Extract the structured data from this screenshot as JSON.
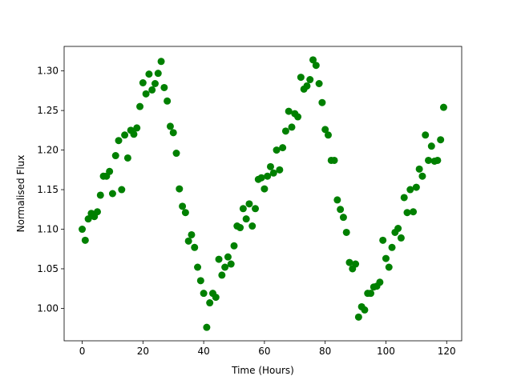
{
  "chart_data": {
    "type": "scatter",
    "xlabel": "Time (Hours)",
    "ylabel": "Normalised Flux",
    "color": "#008000",
    "x": [
      0,
      1,
      2,
      3,
      4,
      5,
      6,
      7,
      8,
      9,
      10,
      11,
      12,
      13,
      14,
      15,
      16,
      17,
      18,
      19,
      20,
      21,
      22,
      23,
      24,
      25,
      26,
      27,
      28,
      29,
      30,
      31,
      32,
      33,
      34,
      35,
      36,
      37,
      38,
      39,
      40,
      41,
      42,
      43,
      44,
      45,
      46,
      47,
      48,
      49,
      50,
      51,
      52,
      53,
      54,
      55,
      56,
      57,
      58,
      59,
      60,
      61,
      62,
      63,
      64,
      65,
      66,
      67,
      68,
      69,
      70,
      71,
      72,
      73,
      74,
      75,
      76,
      77,
      78,
      79,
      80,
      81,
      82,
      83,
      84,
      85,
      86,
      87,
      88,
      89,
      90,
      91,
      92,
      93,
      94,
      95,
      96,
      97,
      98,
      99,
      100,
      101,
      102,
      103,
      104,
      105,
      106,
      107,
      108,
      109,
      110,
      111,
      112,
      113,
      114,
      115,
      116,
      117,
      118,
      119
    ],
    "values": [
      1.1,
      1.086,
      1.113,
      1.12,
      1.116,
      1.122,
      1.143,
      1.167,
      1.167,
      1.173,
      1.145,
      1.193,
      1.212,
      1.15,
      1.219,
      1.19,
      1.225,
      1.22,
      1.228,
      1.255,
      1.285,
      1.271,
      1.296,
      1.276,
      1.284,
      1.297,
      1.312,
      1.279,
      1.262,
      1.23,
      1.222,
      1.196,
      1.151,
      1.129,
      1.121,
      1.085,
      1.093,
      1.077,
      1.052,
      1.035,
      1.019,
      0.976,
      1.007,
      1.019,
      1.014,
      1.062,
      1.042,
      1.052,
      1.065,
      1.056,
      1.079,
      1.104,
      1.102,
      1.126,
      1.113,
      1.132,
      1.104,
      1.126,
      1.163,
      1.165,
      1.151,
      1.167,
      1.179,
      1.171,
      1.2,
      1.175,
      1.203,
      1.224,
      1.249,
      1.229,
      1.246,
      1.242,
      1.292,
      1.277,
      1.281,
      1.289,
      1.314,
      1.307,
      1.284,
      1.26,
      1.226,
      1.219,
      1.187,
      1.187,
      1.137,
      1.125,
      1.115,
      1.096,
      1.058,
      1.05,
      1.056,
      0.989,
      1.002,
      0.998,
      1.019,
      1.019,
      1.027,
      1.028,
      1.033,
      1.086,
      1.063,
      1.052,
      1.077,
      1.096,
      1.101,
      1.089,
      1.14,
      1.121,
      1.15,
      1.122,
      1.153,
      1.176,
      1.167,
      1.219,
      1.187,
      1.205,
      1.186,
      1.187,
      1.213,
      1.254
    ],
    "xlim": [
      -5.95,
      124.95
    ],
    "ylim": [
      0.959,
      1.331
    ],
    "xticks": [
      0,
      20,
      40,
      60,
      80,
      100,
      120
    ],
    "yticks": [
      {
        "value": 1.0,
        "label": "1.00"
      },
      1.05,
      {
        "value": 1.1,
        "label": "1.10"
      },
      1.15,
      {
        "value": 1.2,
        "label": "1.20"
      },
      1.25,
      {
        "value": 1.3,
        "label": "1.30"
      }
    ]
  }
}
